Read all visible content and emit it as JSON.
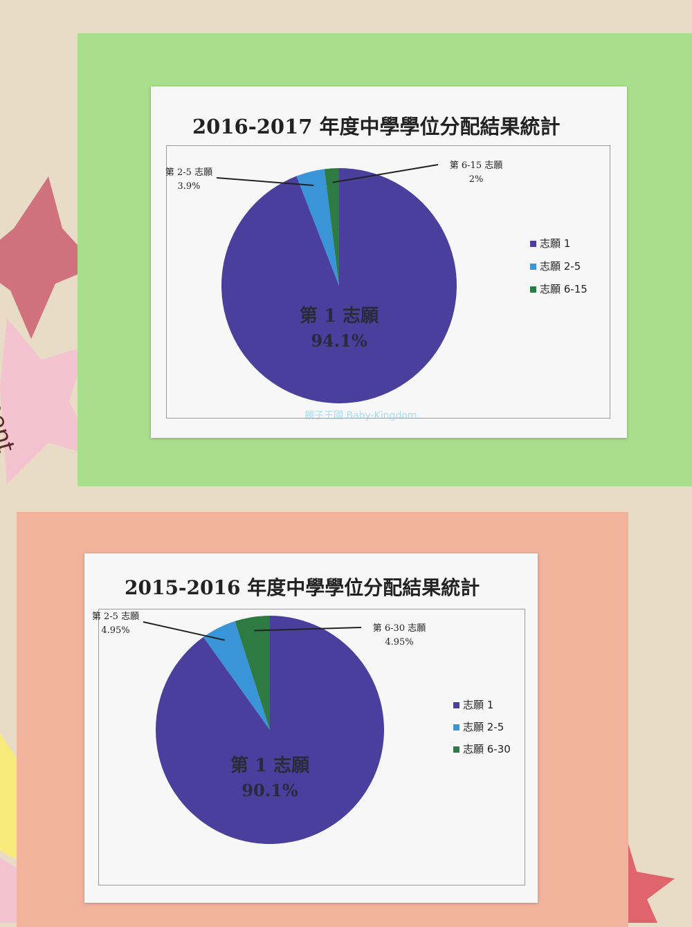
{
  "watermark": "親子王國 Baby-Kingdom",
  "decor_text": "itment",
  "colors": {
    "first": "#4b3f9e",
    "second": "#3a95d8",
    "third": "#2e7a43"
  },
  "chart_data": [
    {
      "type": "pie",
      "title": "2016-2017 年度中學學位分配結果統計",
      "slices": [
        {
          "label": "第 1 志願",
          "value": 94.1,
          "value_label": "94.1%",
          "legend": "志願 1",
          "color": "#4b3f9e"
        },
        {
          "label": "第 2-5 志願",
          "value": 3.9,
          "value_label": "3.9%",
          "legend": "志願 2-5",
          "color": "#3a95d8"
        },
        {
          "label": "第 6-15 志願",
          "value": 2,
          "value_label": "2%",
          "legend": "志願 6-15",
          "color": "#2e7a43"
        }
      ],
      "legend_placement": "right"
    },
    {
      "type": "pie",
      "title": "2015-2016 年度中學學位分配結果統計",
      "slices": [
        {
          "label": "第 1 志願",
          "value": 90.1,
          "value_label": "90.1%",
          "legend": "志願 1",
          "color": "#4b3f9e"
        },
        {
          "label": "第 2-5 志願",
          "value": 4.95,
          "value_label": "4.95%",
          "legend": "志願 2-5",
          "color": "#3a95d8"
        },
        {
          "label": "第 6-30 志願",
          "value": 4.95,
          "value_label": "4.95%",
          "legend": "志願 6-30",
          "color": "#2e7a43"
        }
      ],
      "legend_placement": "right"
    }
  ]
}
